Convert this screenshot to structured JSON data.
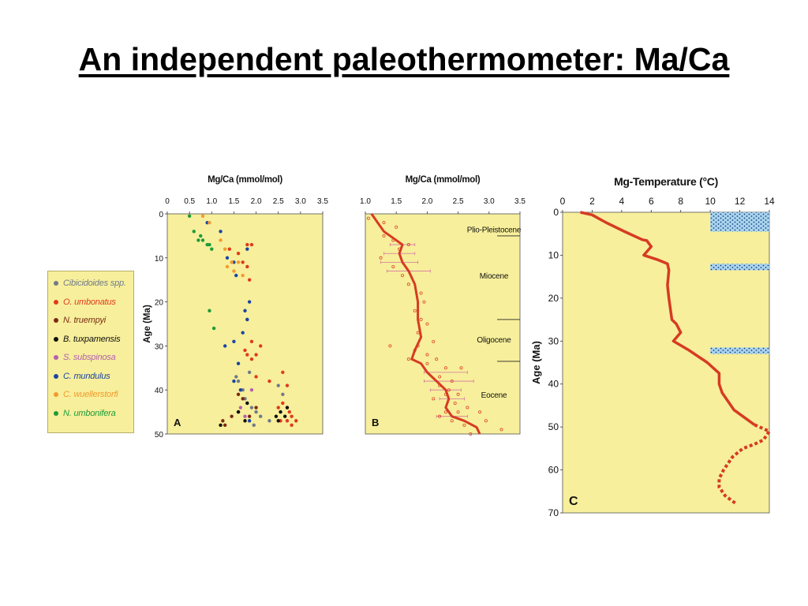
{
  "slide": {
    "title": "An independent paleothermometer: Ma/Ca"
  },
  "legend": {
    "items": [
      {
        "label": "Cibicidoides spp.",
        "color": "#707a8a"
      },
      {
        "label": "O. umbonatus",
        "color": "#e03a1e"
      },
      {
        "label": "N. truempyi",
        "color": "#7a2a14"
      },
      {
        "label": "B. tuxpamensis",
        "color": "#111111"
      },
      {
        "label": "S. subspinosa",
        "color": "#b35fb4"
      },
      {
        "label": "C. mundulus",
        "color": "#1b45a3"
      },
      {
        "label": "C. wuellerstorfi",
        "color": "#f29a2e"
      },
      {
        "label": "N. umbonifera",
        "color": "#1e9b3a"
      }
    ]
  },
  "chart_data": [
    {
      "type": "scatter",
      "panel_label": "A",
      "title": "",
      "xlabel": "Mg/Ca (mmol/mol)",
      "ylabel": "Age (Ma)",
      "xlim": [
        0,
        3.5
      ],
      "ylim": [
        0,
        50
      ],
      "y_inverted": true,
      "x_ticks": [
        "0",
        "0.5",
        "1.0",
        "1.5",
        "2.0",
        "2.5",
        "3.0",
        "3.5"
      ],
      "y_ticks": [
        "0",
        "10",
        "20",
        "30",
        "40",
        "50"
      ],
      "series": [
        {
          "name": "Cibicidoides spp.",
          "points": [
            [
              1.55,
              37
            ],
            [
              1.6,
              38
            ],
            [
              1.7,
              40
            ],
            [
              1.75,
              42
            ],
            [
              1.8,
              43
            ],
            [
              1.9,
              44
            ],
            [
              2.0,
              45
            ],
            [
              2.1,
              46
            ],
            [
              2.3,
              47
            ],
            [
              1.95,
              48
            ],
            [
              2.5,
              39
            ],
            [
              2.6,
              41
            ],
            [
              1.85,
              36
            ]
          ]
        },
        {
          "name": "O. umbonatus",
          "points": [
            [
              1.4,
              8
            ],
            [
              1.6,
              9
            ],
            [
              1.8,
              7
            ],
            [
              1.9,
              7
            ],
            [
              1.7,
              11
            ],
            [
              1.8,
              12
            ],
            [
              1.85,
              15
            ],
            [
              1.8,
              24
            ],
            [
              1.9,
              29
            ],
            [
              1.75,
              31
            ],
            [
              1.8,
              32
            ],
            [
              1.9,
              33
            ],
            [
              2.0,
              32
            ],
            [
              2.1,
              30
            ],
            [
              2.0,
              37
            ],
            [
              2.3,
              38
            ],
            [
              2.6,
              36
            ],
            [
              2.7,
              39
            ],
            [
              2.6,
              43
            ],
            [
              2.7,
              44
            ],
            [
              2.8,
              46
            ],
            [
              2.9,
              47
            ],
            [
              2.75,
              45
            ],
            [
              2.5,
              44
            ],
            [
              2.55,
              47
            ],
            [
              2.7,
              47
            ],
            [
              2.8,
              48
            ]
          ]
        },
        {
          "name": "N. truempyi",
          "points": [
            [
              1.25,
              47
            ],
            [
              1.3,
              48
            ],
            [
              1.45,
              46
            ],
            [
              1.6,
              45
            ],
            [
              1.85,
              46
            ],
            [
              2.0,
              44
            ],
            [
              1.7,
              42
            ],
            [
              1.6,
              41
            ]
          ]
        },
        {
          "name": "B. tuxpamensis",
          "points": [
            [
              1.2,
              48
            ],
            [
              1.6,
              45
            ],
            [
              1.75,
              47
            ],
            [
              2.55,
              45
            ],
            [
              2.65,
              46
            ],
            [
              2.7,
              44
            ],
            [
              2.45,
              46
            ],
            [
              2.5,
              47
            ],
            [
              1.8,
              43
            ]
          ]
        },
        {
          "name": "S. subspinosa",
          "points": [
            [
              1.65,
              44
            ],
            [
              1.9,
              40
            ],
            [
              1.75,
              46
            ]
          ]
        },
        {
          "name": "C. mundulus",
          "points": [
            [
              0.9,
              2
            ],
            [
              1.2,
              4
            ],
            [
              1.8,
              8
            ],
            [
              1.35,
              10
            ],
            [
              1.5,
              11
            ],
            [
              1.55,
              14
            ],
            [
              1.85,
              20
            ],
            [
              1.75,
              22
            ],
            [
              1.8,
              24
            ],
            [
              1.7,
              27
            ],
            [
              1.5,
              29
            ],
            [
              1.3,
              30
            ],
            [
              1.6,
              34
            ],
            [
              1.5,
              38
            ],
            [
              1.65,
              40
            ],
            [
              1.85,
              47
            ]
          ]
        },
        {
          "name": "C. wuellerstorfi",
          "points": [
            [
              0.8,
              0.5
            ],
            [
              0.95,
              2
            ],
            [
              1.2,
              6
            ],
            [
              1.3,
              8
            ],
            [
              1.45,
              11
            ],
            [
              1.5,
              13
            ],
            [
              1.7,
              14
            ],
            [
              1.6,
              11
            ],
            [
              1.35,
              12
            ]
          ]
        },
        {
          "name": "N. umbonifera",
          "points": [
            [
              0.5,
              0.5
            ],
            [
              0.6,
              4
            ],
            [
              0.75,
              5
            ],
            [
              0.8,
              6
            ],
            [
              0.9,
              7
            ],
            [
              1.0,
              8
            ],
            [
              0.95,
              7
            ],
            [
              0.7,
              6
            ],
            [
              0.95,
              22
            ],
            [
              1.05,
              26
            ]
          ]
        }
      ]
    },
    {
      "type": "line",
      "panel_label": "B",
      "title": "",
      "xlabel": "Mg/Ca (mmol/mol)",
      "ylabel": "",
      "xlim": [
        1.0,
        3.5
      ],
      "ylim": [
        0,
        50
      ],
      "y_inverted": true,
      "x_ticks": [
        "1.0",
        "1.5",
        "2.0",
        "2.5",
        "3.0",
        "3.5"
      ],
      "epochs": [
        {
          "name": "Plio-Pleistocene",
          "label_y": 3.5,
          "boundary": 5
        },
        {
          "name": "Miocene",
          "label_y": 14,
          "boundary": 24
        },
        {
          "name": "Oligocene",
          "label_y": 28.5,
          "boundary": 33.5
        },
        {
          "name": "Eocene",
          "label_y": 41
        }
      ],
      "curve": [
        [
          1.1,
          0
        ],
        [
          1.2,
          2
        ],
        [
          1.3,
          4
        ],
        [
          1.45,
          5.5
        ],
        [
          1.6,
          7
        ],
        [
          1.55,
          9
        ],
        [
          1.6,
          11
        ],
        [
          1.7,
          13
        ],
        [
          1.8,
          16
        ],
        [
          1.85,
          20
        ],
        [
          1.85,
          24
        ],
        [
          1.9,
          28
        ],
        [
          1.8,
          31
        ],
        [
          1.75,
          33
        ],
        [
          1.9,
          34
        ],
        [
          2.0,
          36
        ],
        [
          2.15,
          38
        ],
        [
          2.3,
          40
        ],
        [
          2.35,
          42
        ],
        [
          2.3,
          44
        ],
        [
          2.4,
          46
        ],
        [
          2.6,
          47
        ],
        [
          2.8,
          48.5
        ],
        [
          2.85,
          50
        ]
      ],
      "points": [
        [
          1.05,
          1
        ],
        [
          1.3,
          2
        ],
        [
          1.5,
          3
        ],
        [
          1.3,
          5
        ],
        [
          1.45,
          6
        ],
        [
          1.7,
          7
        ],
        [
          1.55,
          8
        ],
        [
          1.25,
          10
        ],
        [
          1.45,
          12
        ],
        [
          1.6,
          14
        ],
        [
          1.7,
          16
        ],
        [
          1.9,
          18
        ],
        [
          1.95,
          20
        ],
        [
          1.8,
          22
        ],
        [
          1.9,
          24
        ],
        [
          2.0,
          25
        ],
        [
          1.85,
          27
        ],
        [
          2.1,
          29
        ],
        [
          1.85,
          30
        ],
        [
          1.4,
          30
        ],
        [
          1.8,
          31
        ],
        [
          2.0,
          32
        ],
        [
          2.15,
          33
        ],
        [
          1.7,
          33
        ],
        [
          2.0,
          34
        ],
        [
          2.3,
          35
        ],
        [
          2.55,
          35
        ],
        [
          2.2,
          37
        ],
        [
          2.4,
          38
        ],
        [
          2.2,
          39
        ],
        [
          2.35,
          40
        ],
        [
          2.3,
          41
        ],
        [
          2.5,
          41
        ],
        [
          2.1,
          42
        ],
        [
          2.45,
          43
        ],
        [
          2.65,
          44
        ],
        [
          2.3,
          45
        ],
        [
          2.5,
          45
        ],
        [
          2.85,
          45
        ],
        [
          2.2,
          46
        ],
        [
          2.4,
          47
        ],
        [
          2.95,
          47
        ],
        [
          2.6,
          48
        ],
        [
          3.2,
          49
        ],
        [
          2.7,
          50
        ]
      ],
      "error_bars": [
        [
          1.6,
          7,
          0.2
        ],
        [
          1.55,
          9,
          0.25
        ],
        [
          1.55,
          11,
          0.3
        ],
        [
          1.7,
          13,
          0.35
        ],
        [
          2.3,
          36,
          0.35
        ],
        [
          2.35,
          38,
          0.4
        ],
        [
          2.3,
          40,
          0.25
        ],
        [
          2.4,
          42,
          0.2
        ],
        [
          2.4,
          46,
          0.25
        ]
      ]
    },
    {
      "type": "line",
      "panel_label": "C",
      "title": "",
      "xlabel": "Mg-Temperature (°C)",
      "ylabel": "Age (Ma)",
      "xlim": [
        0,
        14
      ],
      "ylim": [
        0,
        70
      ],
      "y_inverted": true,
      "x_ticks": [
        "0",
        "2",
        "4",
        "6",
        "8",
        "10",
        "12",
        "14"
      ],
      "y_ticks": [
        "0",
        "10",
        "20",
        "30",
        "40",
        "50",
        "60",
        "70"
      ],
      "shaded_bands": [
        {
          "x": [
            10,
            14
          ],
          "y": [
            0,
            4.5
          ]
        },
        {
          "x": [
            10,
            14
          ],
          "y": [
            12,
            13.5
          ]
        },
        {
          "x": [
            10,
            14
          ],
          "y": [
            31.5,
            33
          ]
        }
      ],
      "curve_solid": [
        [
          1.2,
          0
        ],
        [
          2,
          0.6
        ],
        [
          3,
          2.5
        ],
        [
          4.2,
          4.5
        ],
        [
          5.4,
          6.4
        ],
        [
          5.7,
          6.6
        ],
        [
          6,
          8
        ],
        [
          5.5,
          10
        ],
        [
          6.4,
          11
        ],
        [
          7.1,
          12
        ],
        [
          7.2,
          13.5
        ],
        [
          7.1,
          17
        ],
        [
          7.2,
          20
        ],
        [
          7.4,
          25
        ],
        [
          7.7,
          26
        ],
        [
          8.0,
          28
        ],
        [
          7.5,
          30
        ],
        [
          8.5,
          32
        ],
        [
          9.8,
          35
        ],
        [
          10.6,
          37.5
        ],
        [
          10.6,
          40
        ],
        [
          10.8,
          42
        ],
        [
          11.6,
          46
        ],
        [
          13.0,
          49.5
        ]
      ],
      "curve_dashed": [
        [
          13.0,
          49.5
        ],
        [
          14,
          51
        ],
        [
          13.6,
          53
        ],
        [
          13.0,
          54
        ],
        [
          12.2,
          55
        ],
        [
          11.5,
          57
        ],
        [
          10.9,
          60
        ],
        [
          10.6,
          62
        ],
        [
          10.6,
          64
        ],
        [
          11.0,
          66
        ],
        [
          11.8,
          68
        ]
      ]
    }
  ]
}
